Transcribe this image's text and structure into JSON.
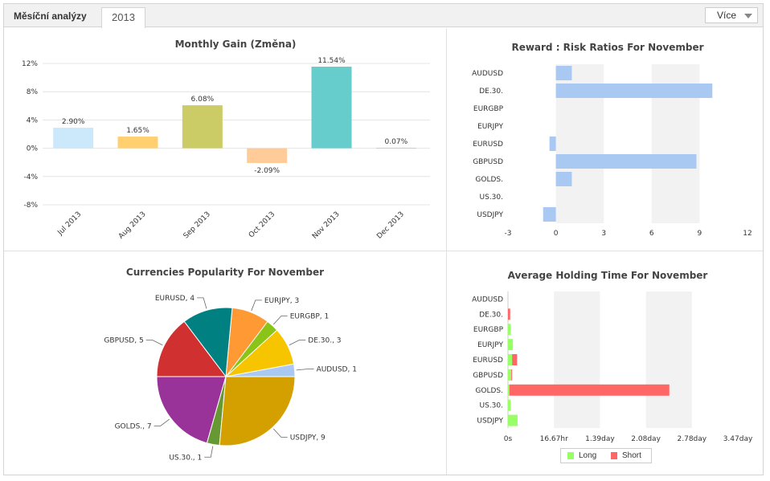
{
  "tabs": {
    "main_label": "Měsíční analýzy",
    "year_label": "2013",
    "more_label": "Více"
  },
  "chart_data": [
    {
      "type": "bar",
      "title": "Monthly Gain (Změna)",
      "categories": [
        "Jul 2013",
        "Aug 2013",
        "Sep 2013",
        "Oct 2013",
        "Nov 2013",
        "Dec 2013"
      ],
      "values": [
        2.9,
        1.65,
        6.08,
        -2.09,
        11.54,
        0.07
      ],
      "data_labels": [
        "2.90%",
        "1.65%",
        "6.08%",
        "-2.09%",
        "11.54%",
        "0.07%"
      ],
      "colors": [
        "#cce9fb",
        "#ffcf70",
        "#cccc66",
        "#ffcc99",
        "#66cccc",
        "#cccccc"
      ],
      "ylim": [
        -8,
        12
      ],
      "yticks": [
        "12%",
        "8%",
        "4%",
        "0%",
        "-4%",
        "-8%"
      ]
    },
    {
      "type": "bar",
      "orientation": "horizontal",
      "title": "Reward : Risk Ratios For November",
      "categories": [
        "AUDUSD",
        "DE.30.",
        "EURGBP",
        "EURJPY",
        "EURUSD",
        "GBPUSD",
        "GOLDS.",
        "US.30.",
        "USDJPY"
      ],
      "values": [
        1.0,
        9.8,
        0,
        0,
        -0.4,
        8.8,
        1.0,
        0,
        -0.8
      ],
      "color": "#a9c9f2",
      "xlim": [
        -3,
        12
      ],
      "xticks": [
        "-3",
        "0",
        "3",
        "6",
        "9",
        "12"
      ]
    },
    {
      "type": "pie",
      "title": "Currencies Popularity For November",
      "slices": [
        {
          "label": "AUDUSD, 1",
          "value": 1,
          "color": "#a9c9f2"
        },
        {
          "label": "DE.30., 3",
          "value": 3,
          "color": "#f7c400"
        },
        {
          "label": "EURGBP, 1",
          "value": 1,
          "color": "#8ac417"
        },
        {
          "label": "EURJPY, 3",
          "value": 3,
          "color": "#ff9933"
        },
        {
          "label": "EURUSD, 4",
          "value": 4,
          "color": "#008080"
        },
        {
          "label": "GBPUSD, 5",
          "value": 5,
          "color": "#d03030"
        },
        {
          "label": "GOLDS., 7",
          "value": 7,
          "color": "#993399"
        },
        {
          "label": "US.30., 1",
          "value": 1,
          "color": "#669933"
        },
        {
          "label": "USDJPY, 9",
          "value": 9,
          "color": "#d4a000"
        }
      ]
    },
    {
      "type": "bar",
      "orientation": "horizontal",
      "stacked": true,
      "title": "Average Holding Time For November",
      "categories": [
        "AUDUSD",
        "DE.30.",
        "EURGBP",
        "EURJPY",
        "EURUSD",
        "GBPUSD",
        "GOLDS.",
        "US.30.",
        "USDJPY"
      ],
      "xticks": [
        "0s",
        "16.67hr",
        "1.39day",
        "2.08day",
        "2.78day",
        "3.47day"
      ],
      "xlim_hours": [
        0,
        83.33
      ],
      "series": [
        {
          "name": "Long",
          "color": "#99ff66",
          "values": [
            0,
            0,
            1.0,
            1.8,
            1.5,
            1.2,
            0.5,
            1.0,
            3.5
          ]
        },
        {
          "name": "Short",
          "color": "#ff6666",
          "values": [
            0,
            0.8,
            0,
            0,
            1.8,
            0.3,
            58.0,
            0,
            0
          ]
        }
      ]
    }
  ]
}
